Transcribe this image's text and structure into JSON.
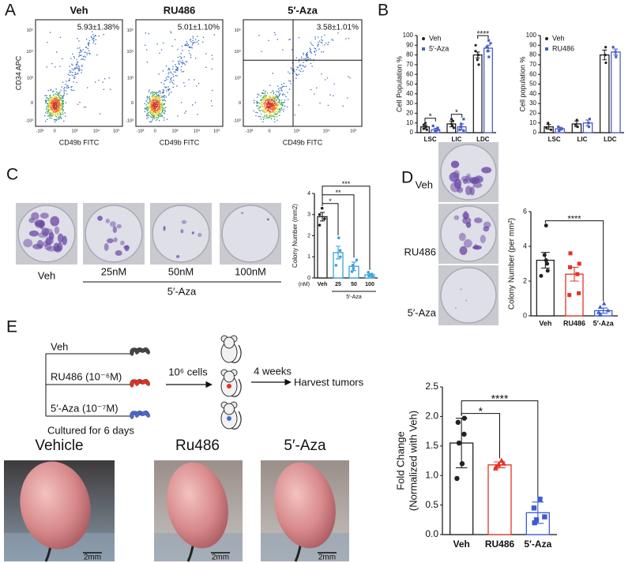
{
  "panel_labels": [
    "A",
    "B",
    "C",
    "D",
    "E"
  ],
  "flow_cytometry": {
    "y_label": "CD34 APC",
    "x_label": "CD49b FITC",
    "y_ticks": [
      "10⁵",
      "10⁴",
      "10³",
      "0",
      "-10³"
    ],
    "x_ticks": [
      "-10³",
      "0",
      "10³",
      "10⁴",
      "10⁵"
    ],
    "plots": [
      {
        "title": "Veh",
        "percentage": "5.93±1.38%"
      },
      {
        "title": "RU486",
        "percentage": "5.01±1.10%"
      },
      {
        "title": "5′-Aza",
        "percentage": "3.58±1.01%"
      }
    ]
  },
  "colony_assay_c": {
    "wells": [
      "Veh",
      "25nM",
      "50nM",
      "100nM"
    ],
    "group_label": "5′-Aza"
  },
  "colony_assay_d": {
    "wells": [
      "Veh",
      "RU486",
      "5′-Aza"
    ]
  },
  "xenograft_schematic": {
    "groups": [
      "Veh",
      "RU486 (10⁻⁶M)",
      "5′-Aza (10⁻⁷M)"
    ],
    "culture_note": "Cultured for 6 days",
    "injection": "10⁶ cells",
    "duration": "4 weeks",
    "endpoint": "Harvest tumors"
  },
  "tumor_photos": {
    "labels": [
      "Vehicle",
      "Ru486",
      "5′-Aza"
    ],
    "scale_bar": "2mm"
  },
  "chart_data": [
    {
      "type": "bar",
      "ylabel": "Cell Population %",
      "categories": [
        "LSC",
        "LIC",
        "LDC"
      ],
      "series": [
        {
          "name": "Veh",
          "color": "#222222",
          "marker": "circle",
          "values": [
            6,
            9,
            80
          ],
          "errors": [
            2,
            3,
            3
          ],
          "points": [
            [
              3,
              4,
              6,
              8,
              10
            ],
            [
              5,
              7,
              9,
              12,
              14
            ],
            [
              70,
              75,
              80,
              84,
              90
            ]
          ]
        },
        {
          "name": "5′-Aza",
          "color": "#4a5fc1",
          "marker": "square",
          "values": [
            3,
            6,
            87
          ],
          "errors": [
            1.5,
            3,
            3
          ],
          "points": [
            [
              1,
              2,
              3,
              5,
              7
            ],
            [
              2,
              3,
              6,
              9,
              14
            ],
            [
              78,
              84,
              88,
              92,
              95
            ]
          ]
        }
      ],
      "ylim": [
        0,
        100
      ],
      "yticks": [
        0,
        10,
        20,
        30,
        40,
        50,
        60,
        70,
        80,
        90,
        100
      ],
      "legend": "upper left",
      "annotations": [
        {
          "text": "*",
          "category": "LSC"
        },
        {
          "text": "*",
          "category": "LIC"
        },
        {
          "text": "****",
          "category": "LDC"
        }
      ]
    },
    {
      "type": "bar",
      "ylabel": "Cell population %",
      "categories": [
        "LSC",
        "LIC",
        "LDC"
      ],
      "series": [
        {
          "name": "Veh",
          "color": "#222222",
          "marker": "circle",
          "values": [
            6,
            9,
            80
          ],
          "errors": [
            2.5,
            3,
            5
          ],
          "points": [
            [
              3,
              5,
              10
            ],
            [
              6,
              8,
              13
            ],
            [
              72,
              80,
              88
            ]
          ]
        },
        {
          "name": "RU486",
          "color": "#4a5fc1",
          "marker": "square",
          "values": [
            4,
            10,
            83
          ],
          "errors": [
            1.5,
            3,
            3
          ],
          "points": [
            [
              2,
              4,
              6
            ],
            [
              6,
              10,
              14
            ],
            [
              78,
              83,
              88
            ]
          ]
        }
      ],
      "ylim": [
        0,
        100
      ],
      "yticks": [
        0,
        10,
        20,
        30,
        40,
        50,
        60,
        70,
        80,
        90,
        100
      ],
      "legend": "upper left"
    },
    {
      "type": "bar",
      "ylabel": "Colony Number (mm2)",
      "categories": [
        "Veh",
        "25",
        "50",
        "100"
      ],
      "x_unit": "(nM)",
      "group_label": "5′-Aza",
      "values": [
        2.9,
        1.2,
        0.55,
        0.15
      ],
      "errors": [
        0.2,
        0.3,
        0.2,
        0.06
      ],
      "colors": [
        "#222222",
        "#3aa0d8",
        "#3aa0d8",
        "#3aa0d8"
      ],
      "markers": [
        "circle",
        "circle",
        "circle",
        "circle"
      ],
      "points": [
        [
          2.5,
          2.8,
          3.0,
          3.3
        ],
        [
          0.6,
          1.0,
          1.3,
          1.9
        ],
        [
          0.3,
          0.45,
          0.6,
          0.85
        ],
        [
          0.05,
          0.1,
          0.18,
          0.27
        ]
      ],
      "ylim": [
        0,
        4
      ],
      "yticks": [
        0,
        1,
        2,
        3,
        4
      ],
      "annotations": [
        {
          "text": "*",
          "between": [
            "Veh",
            "25"
          ]
        },
        {
          "text": "**",
          "between": [
            "Veh",
            "50"
          ]
        },
        {
          "text": "***",
          "between": [
            "Veh",
            "100"
          ]
        }
      ]
    },
    {
      "type": "bar",
      "ylabel": "Colony Number (per mm²)",
      "categories": [
        "Veh",
        "RU486",
        "5′-Aza"
      ],
      "values": [
        3.2,
        2.4,
        0.3
      ],
      "errors": [
        0.45,
        0.4,
        0.15
      ],
      "colors": [
        "#222222",
        "#e53224",
        "#3e5bd6"
      ],
      "markers": [
        "circle",
        "square",
        "triangle"
      ],
      "points": [
        [
          2.3,
          2.6,
          3.0,
          3.2,
          3.5,
          5.2
        ],
        [
          1.2,
          1.3,
          2.4,
          2.8,
          3.0,
          3.6
        ],
        [
          0.05,
          0.1,
          0.2,
          0.3,
          0.5,
          0.7
        ]
      ],
      "ylim": [
        0,
        6
      ],
      "yticks": [
        0,
        2,
        4,
        6
      ],
      "annotations": [
        {
          "text": "****",
          "between": [
            "Veh",
            "5′-Aza"
          ]
        }
      ]
    },
    {
      "type": "bar",
      "ylabel": [
        "Fold Change",
        "(Normalized with Veh)"
      ],
      "categories": [
        "Veh",
        "RU486",
        "5′-Aza"
      ],
      "values": [
        1.55,
        1.18,
        0.37
      ],
      "errors": [
        0.42,
        0.05,
        0.18
      ],
      "colors": [
        "#222222",
        "#e53224",
        "#3e5bd6"
      ],
      "markers": [
        "circle",
        "triangle",
        "square"
      ],
      "points": [
        [
          0.95,
          1.2,
          1.55,
          1.7,
          1.97,
          1.9
        ],
        [
          1.12,
          1.15,
          1.18,
          1.2,
          1.25
        ],
        [
          0.2,
          0.25,
          0.3,
          0.45,
          0.6
        ]
      ],
      "ylim": [
        0,
        2.5
      ],
      "yticks": [
        {
          "value": 0,
          "label": "0.0"
        },
        0.5,
        {
          "value": 1,
          "label": "1.0"
        },
        1.5,
        {
          "value": 2,
          "label": "2.0"
        },
        2.5
      ],
      "annotations": [
        {
          "text": "*",
          "between": [
            "Veh",
            "RU486"
          ]
        },
        {
          "text": "****",
          "between": [
            "Veh",
            "5′-Aza"
          ]
        }
      ]
    }
  ]
}
